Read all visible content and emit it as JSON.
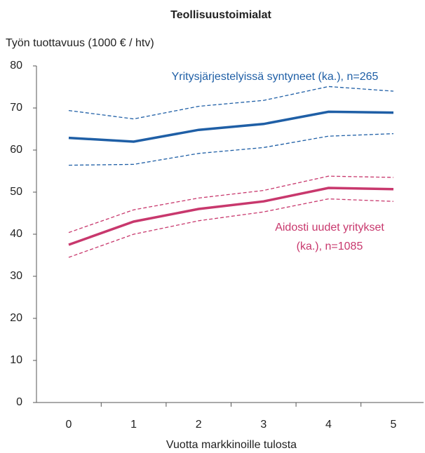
{
  "chart_data": {
    "type": "line",
    "title": "Teollisuustoimialat",
    "y_label": "Työn tuottavuus (1000 € / htv)",
    "x_label": "Vuotta markkinoille tulosta",
    "categories": [
      "0",
      "1",
      "2",
      "3",
      "4",
      "5"
    ],
    "series": [
      {
        "color": "#1f5fa6",
        "dashed": false,
        "values": [
          62.9,
          62.0,
          64.8,
          66.2,
          69.1,
          68.9
        ]
      },
      {
        "color": "#1f5fa6",
        "dashed": true,
        "values": [
          69.4,
          67.4,
          70.4,
          71.8,
          75.1,
          74.0
        ]
      },
      {
        "color": "#1f5fa6",
        "dashed": true,
        "values": [
          56.4,
          56.6,
          59.2,
          60.6,
          63.3,
          63.9
        ]
      },
      {
        "color": "#c8386d",
        "dashed": false,
        "values": [
          37.5,
          43.0,
          46.0,
          47.8,
          51.0,
          50.7
        ]
      },
      {
        "color": "#c8386d",
        "dashed": true,
        "values": [
          40.4,
          45.8,
          48.6,
          50.4,
          53.8,
          53.5
        ]
      },
      {
        "color": "#c8386d",
        "dashed": true,
        "values": [
          34.5,
          40.0,
          43.2,
          45.3,
          48.4,
          47.8
        ]
      }
    ],
    "annotations": [
      {
        "text": "Yritysjärjestelyissä syntyneet (ka.), n=265",
        "color": "#1f5fa6"
      },
      {
        "text": "Aidosti uudet yritykset",
        "color": "#c8386d"
      },
      {
        "text": "(ka.), n=1085",
        "color": "#c8386d"
      }
    ],
    "ylim": [
      0,
      80
    ],
    "yticks": [
      0,
      10,
      20,
      30,
      40,
      50,
      60,
      70,
      80
    ],
    "grid": false
  }
}
